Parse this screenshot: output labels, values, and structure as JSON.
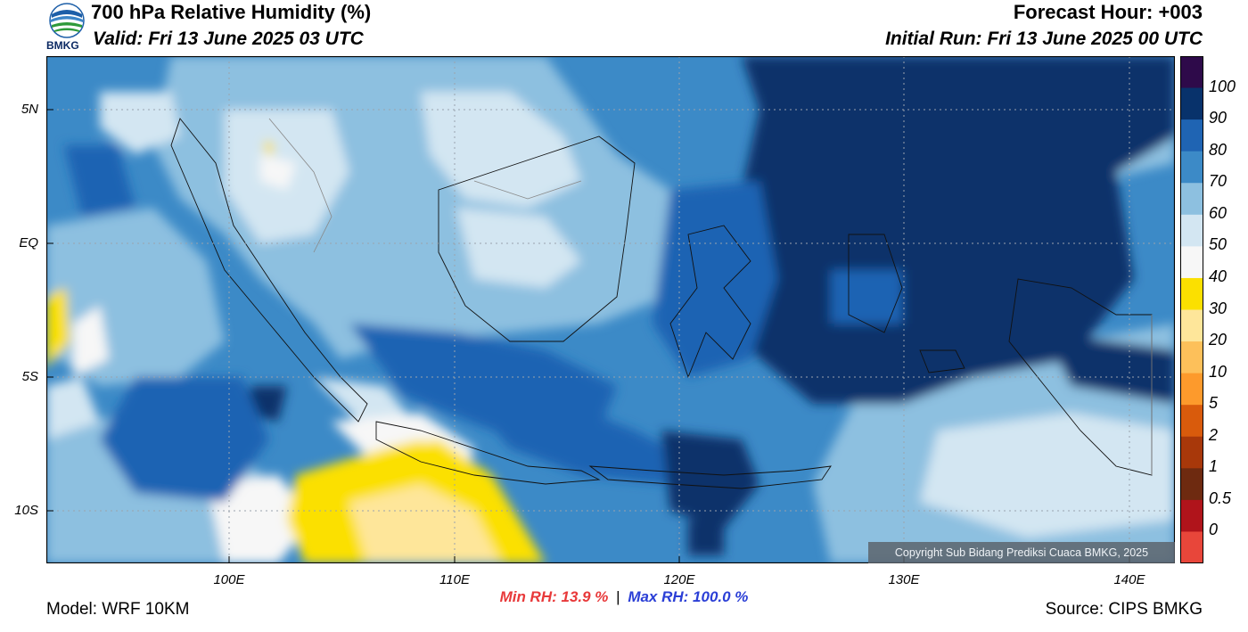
{
  "header": {
    "title": "700 hPa Relative Humidity (%)",
    "valid": "Valid: Fri 13 June 2025 03 UTC",
    "forecast_hour": "Forecast Hour: +003",
    "initial_run": "Initial Run: Fri 13 June 2025 00 UTC"
  },
  "logo": {
    "text": "BMKG"
  },
  "axes": {
    "lat_labels": [
      "5N",
      "EQ",
      "5S",
      "10S"
    ],
    "lon_labels": [
      "100E",
      "110E",
      "120E",
      "130E",
      "140E"
    ]
  },
  "colorbar": {
    "labels": [
      "100",
      "90",
      "80",
      "70",
      "60",
      "50",
      "40",
      "30",
      "20",
      "10",
      "5",
      "2",
      "1",
      "0.5",
      "0"
    ],
    "colors": [
      "#2e0a4a",
      "#08326b",
      "#1f64b3",
      "#3c8ac7",
      "#8dc0e0",
      "#d3e6f2",
      "#f7f7f7",
      "#fbe000",
      "#fee69a",
      "#fdc05a",
      "#fd9a2c",
      "#d95b0c",
      "#a8380a",
      "#6e2a10",
      "#b0141b",
      "#e8463a"
    ]
  },
  "stats": {
    "min": "Min RH:  13.9 %",
    "separator": "|",
    "max": "Max RH: 100.0 %"
  },
  "footer": {
    "model": "Model: WRF 10KM",
    "source": "Source: CIPS BMKG",
    "copyright": "Copyright Sub Bidang Prediksi Cuaca BMKG, 2025"
  }
}
